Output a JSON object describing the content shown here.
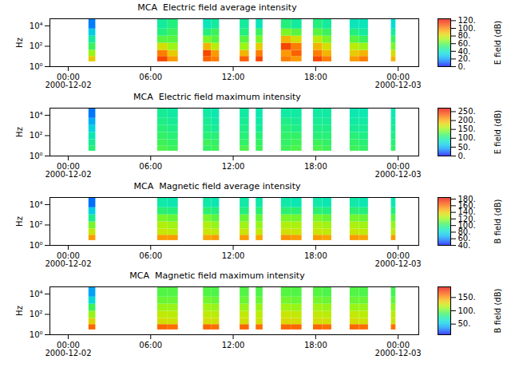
{
  "chart_data": [
    {
      "type": "heatmap",
      "title": "MCA  Electric field average intensity",
      "ylabel": "Hz",
      "log": "y",
      "xlim": [
        "2000-12-01T22:40",
        "2000-12-03T01:30"
      ],
      "xticks": [
        {
          "value": "2000-12-02T00:00",
          "label": "00:00\n2000-12-02"
        },
        {
          "value": "2000-12-02T06:00",
          "label": "06:00"
        },
        {
          "value": "2000-12-02T12:00",
          "label": "12:00"
        },
        {
          "value": "2000-12-02T18:00",
          "label": "18:00"
        },
        {
          "value": "2000-12-03T00:00",
          "label": "00:00\n2000-12-03"
        }
      ],
      "ylim": [
        1,
        50000
      ],
      "yticks": [
        {
          "value": 1,
          "label": "10⁰"
        },
        {
          "value": 100,
          "label": "10²"
        },
        {
          "value": 10000,
          "label": "10⁴"
        }
      ],
      "x": [
        [
          "2000-12-02T01:30",
          "2000-12-02T02:00"
        ],
        [
          "2000-12-02T06:30",
          "2000-12-02T07:15"
        ],
        [
          "2000-12-02T07:15",
          "2000-12-02T08:00"
        ],
        [
          "2000-12-02T09:50",
          "2000-12-02T10:25"
        ],
        [
          "2000-12-02T10:25",
          "2000-12-02T11:00"
        ],
        [
          "2000-12-02T12:30",
          "2000-12-02T13:10"
        ],
        [
          "2000-12-02T13:40",
          "2000-12-02T14:10"
        ],
        [
          "2000-12-02T15:30",
          "2000-12-02T16:15"
        ],
        [
          "2000-12-02T16:15",
          "2000-12-02T17:00"
        ],
        [
          "2000-12-02T17:50",
          "2000-12-02T18:30"
        ],
        [
          "2000-12-02T18:30",
          "2000-12-02T19:10"
        ],
        [
          "2000-12-02T20:30",
          "2000-12-02T21:10"
        ],
        [
          "2000-12-02T21:10",
          "2000-12-02T21:50"
        ],
        [
          "2000-12-02T23:30",
          "2000-12-02T23:50"
        ]
      ],
      "y": [
        3,
        10,
        40,
        200,
        1000,
        5000,
        50000
      ],
      "values": [
        [
          85,
          70,
          55,
          45,
          30,
          15
        ],
        [
          110,
          100,
          80,
          60,
          50,
          45
        ],
        [
          95,
          85,
          70,
          60,
          55,
          50
        ],
        [
          105,
          110,
          90,
          65,
          50,
          40
        ],
        [
          100,
          95,
          75,
          60,
          55,
          45
        ],
        [
          105,
          90,
          70,
          60,
          50,
          45
        ],
        [
          110,
          100,
          85,
          65,
          55,
          40
        ],
        [
          100,
          95,
          110,
          90,
          65,
          50
        ],
        [
          95,
          105,
          100,
          80,
          60,
          45
        ],
        [
          110,
          100,
          90,
          75,
          60,
          50
        ],
        [
          100,
          90,
          80,
          65,
          55,
          45
        ],
        [
          95,
          85,
          75,
          60,
          50,
          40
        ],
        [
          100,
          90,
          70,
          55,
          45,
          40
        ],
        [
          90,
          80,
          65,
          55,
          45,
          35
        ]
      ],
      "colorbar": {
        "label": "E field (dB)",
        "range": [
          0,
          125
        ],
        "ticks": [
          {
            "value": 0,
            "label": "0."
          },
          {
            "value": 20,
            "label": "20."
          },
          {
            "value": 40,
            "label": "40."
          },
          {
            "value": 60,
            "label": "60."
          },
          {
            "value": 80,
            "label": "80."
          },
          {
            "value": 100,
            "label": "100."
          },
          {
            "value": 120,
            "label": "120."
          }
        ]
      }
    },
    {
      "type": "heatmap",
      "title": "MCA  Electric field maximum intensity",
      "ylabel": "Hz",
      "log": "y",
      "xlim": [
        "2000-12-01T22:40",
        "2000-12-03T01:30"
      ],
      "xticks": [
        {
          "value": "2000-12-02T00:00",
          "label": "00:00\n2000-12-02"
        },
        {
          "value": "2000-12-02T06:00",
          "label": "06:00"
        },
        {
          "value": "2000-12-02T12:00",
          "label": "12:00"
        },
        {
          "value": "2000-12-02T18:00",
          "label": "18:00"
        },
        {
          "value": "2000-12-03T00:00",
          "label": "00:00\n2000-12-03"
        }
      ],
      "ylim": [
        1,
        50000
      ],
      "yticks": [
        {
          "value": 1,
          "label": "10⁰"
        },
        {
          "value": 100,
          "label": "10²"
        },
        {
          "value": 10000,
          "label": "10⁴"
        }
      ],
      "x": [
        [
          "2000-12-02T01:30",
          "2000-12-02T02:00"
        ],
        [
          "2000-12-02T06:30",
          "2000-12-02T07:15"
        ],
        [
          "2000-12-02T07:15",
          "2000-12-02T08:00"
        ],
        [
          "2000-12-02T09:50",
          "2000-12-02T10:25"
        ],
        [
          "2000-12-02T10:25",
          "2000-12-02T11:00"
        ],
        [
          "2000-12-02T12:30",
          "2000-12-02T13:10"
        ],
        [
          "2000-12-02T13:40",
          "2000-12-02T14:10"
        ],
        [
          "2000-12-02T15:30",
          "2000-12-02T16:15"
        ],
        [
          "2000-12-02T16:15",
          "2000-12-02T17:00"
        ],
        [
          "2000-12-02T17:50",
          "2000-12-02T18:30"
        ],
        [
          "2000-12-02T18:30",
          "2000-12-02T19:10"
        ],
        [
          "2000-12-02T20:30",
          "2000-12-02T21:10"
        ],
        [
          "2000-12-02T21:10",
          "2000-12-02T21:50"
        ],
        [
          "2000-12-02T23:30",
          "2000-12-02T23:50"
        ]
      ],
      "y": [
        3,
        10,
        40,
        200,
        1000,
        5000,
        50000
      ],
      "values": [
        [
          110,
          100,
          90,
          70,
          50,
          30
        ],
        [
          125,
          120,
          115,
          110,
          105,
          100
        ],
        [
          120,
          115,
          110,
          105,
          100,
          95
        ],
        [
          115,
          120,
          110,
          105,
          100,
          95
        ],
        [
          120,
          115,
          110,
          100,
          95,
          90
        ],
        [
          125,
          115,
          110,
          105,
          100,
          95
        ],
        [
          120,
          115,
          110,
          100,
          95,
          90
        ],
        [
          120,
          115,
          115,
          110,
          105,
          95
        ],
        [
          125,
          120,
          115,
          105,
          100,
          95
        ],
        [
          125,
          120,
          110,
          105,
          100,
          95
        ],
        [
          120,
          115,
          110,
          105,
          100,
          95
        ],
        [
          120,
          115,
          110,
          100,
          95,
          90
        ],
        [
          115,
          110,
          105,
          100,
          95,
          90
        ],
        [
          115,
          110,
          105,
          100,
          95,
          90
        ]
      ],
      "colorbar": {
        "label": "E field (dB)",
        "range": [
          0,
          270
        ],
        "ticks": [
          {
            "value": 0,
            "label": "0."
          },
          {
            "value": 50,
            "label": "50."
          },
          {
            "value": 100,
            "label": "100."
          },
          {
            "value": 150,
            "label": "150."
          },
          {
            "value": 200,
            "label": "200."
          },
          {
            "value": 250,
            "label": "250."
          }
        ]
      }
    },
    {
      "type": "heatmap",
      "title": "MCA  Magnetic field average intensity",
      "ylabel": "Hz",
      "log": "y",
      "xlim": [
        "2000-12-01T22:40",
        "2000-12-03T01:30"
      ],
      "xticks": [
        {
          "value": "2000-12-02T00:00",
          "label": "00:00\n2000-12-02"
        },
        {
          "value": "2000-12-02T06:00",
          "label": "06:00"
        },
        {
          "value": "2000-12-02T12:00",
          "label": "12:00"
        },
        {
          "value": "2000-12-02T18:00",
          "label": "18:00"
        },
        {
          "value": "2000-12-03T00:00",
          "label": "00:00\n2000-12-03"
        }
      ],
      "ylim": [
        1,
        50000
      ],
      "yticks": [
        {
          "value": 1,
          "label": "10⁰"
        },
        {
          "value": 100,
          "label": "10²"
        },
        {
          "value": 10000,
          "label": "10⁴"
        }
      ],
      "x": [
        [
          "2000-12-02T01:30",
          "2000-12-02T02:00"
        ],
        [
          "2000-12-02T06:30",
          "2000-12-02T07:15"
        ],
        [
          "2000-12-02T07:15",
          "2000-12-02T08:00"
        ],
        [
          "2000-12-02T09:50",
          "2000-12-02T10:25"
        ],
        [
          "2000-12-02T10:25",
          "2000-12-02T11:00"
        ],
        [
          "2000-12-02T12:30",
          "2000-12-02T13:10"
        ],
        [
          "2000-12-02T13:40",
          "2000-12-02T14:10"
        ],
        [
          "2000-12-02T15:30",
          "2000-12-02T16:15"
        ],
        [
          "2000-12-02T16:15",
          "2000-12-02T17:00"
        ],
        [
          "2000-12-02T17:50",
          "2000-12-02T18:30"
        ],
        [
          "2000-12-02T18:30",
          "2000-12-02T19:10"
        ],
        [
          "2000-12-02T20:30",
          "2000-12-02T21:10"
        ],
        [
          "2000-12-02T21:10",
          "2000-12-02T21:50"
        ],
        [
          "2000-12-02T23:30",
          "2000-12-02T23:50"
        ]
      ],
      "y": [
        3,
        10,
        40,
        200,
        1000,
        5000,
        50000
      ],
      "values": [
        [
          150,
          130,
          115,
          95,
          75,
          55
        ],
        [
          150,
          130,
          125,
          115,
          100,
          90
        ],
        [
          150,
          128,
          122,
          112,
          98,
          88
        ],
        [
          148,
          130,
          125,
          115,
          100,
          90
        ],
        [
          150,
          128,
          120,
          110,
          98,
          88
        ],
        [
          150,
          130,
          122,
          112,
          98,
          90
        ],
        [
          148,
          128,
          120,
          112,
          100,
          90
        ],
        [
          152,
          132,
          125,
          115,
          100,
          90
        ],
        [
          150,
          130,
          124,
          114,
          100,
          88
        ],
        [
          150,
          130,
          125,
          115,
          100,
          90
        ],
        [
          148,
          128,
          122,
          112,
          98,
          88
        ],
        [
          150,
          130,
          124,
          114,
          100,
          90
        ],
        [
          148,
          128,
          122,
          112,
          98,
          88
        ],
        [
          150,
          128,
          120,
          110,
          98,
          88
        ]
      ],
      "colorbar": {
        "label": "B field (dB)",
        "range": [
          40,
          185
        ],
        "ticks": [
          {
            "value": 40,
            "label": "40."
          },
          {
            "value": 60,
            "label": "60."
          },
          {
            "value": 80,
            "label": "80."
          },
          {
            "value": 100,
            "label": "100."
          },
          {
            "value": 120,
            "label": "120."
          },
          {
            "value": 140,
            "label": "140."
          },
          {
            "value": 160,
            "label": "160."
          },
          {
            "value": 180,
            "label": "180."
          }
        ]
      }
    },
    {
      "type": "heatmap",
      "title": "MCA  Magnetic field maximum intensity",
      "ylabel": "Hz",
      "log": "y",
      "xlim": [
        "2000-12-01T22:40",
        "2000-12-03T01:30"
      ],
      "xticks": [
        {
          "value": "2000-12-02T00:00",
          "label": "00:00\n2000-12-02"
        },
        {
          "value": "2000-12-02T06:00",
          "label": "06:00"
        },
        {
          "value": "2000-12-02T12:00",
          "label": "12:00"
        },
        {
          "value": "2000-12-02T18:00",
          "label": "18:00"
        },
        {
          "value": "2000-12-03T00:00",
          "label": "00:00\n2000-12-03"
        }
      ],
      "ylim": [
        1,
        50000
      ],
      "yticks": [
        {
          "value": 1,
          "label": "10⁰"
        },
        {
          "value": 100,
          "label": "10²"
        },
        {
          "value": 10000,
          "label": "10⁴"
        }
      ],
      "x": [
        [
          "2000-12-02T01:30",
          "2000-12-02T02:00"
        ],
        [
          "2000-12-02T06:30",
          "2000-12-02T07:15"
        ],
        [
          "2000-12-02T07:15",
          "2000-12-02T08:00"
        ],
        [
          "2000-12-02T09:50",
          "2000-12-02T10:25"
        ],
        [
          "2000-12-02T10:25",
          "2000-12-02T11:00"
        ],
        [
          "2000-12-02T12:30",
          "2000-12-02T13:10"
        ],
        [
          "2000-12-02T13:40",
          "2000-12-02T14:10"
        ],
        [
          "2000-12-02T15:30",
          "2000-12-02T16:15"
        ],
        [
          "2000-12-02T16:15",
          "2000-12-02T17:00"
        ],
        [
          "2000-12-02T17:50",
          "2000-12-02T18:30"
        ],
        [
          "2000-12-02T18:30",
          "2000-12-02T19:10"
        ],
        [
          "2000-12-02T20:30",
          "2000-12-02T21:10"
        ],
        [
          "2000-12-02T21:10",
          "2000-12-02T21:50"
        ],
        [
          "2000-12-02T23:30",
          "2000-12-02T23:50"
        ]
      ],
      "y": [
        3,
        10,
        40,
        200,
        1000,
        5000,
        50000
      ],
      "values": [
        [
          160,
          130,
          110,
          90,
          60,
          40
        ],
        [
          160,
          125,
          120,
          110,
          100,
          95
        ],
        [
          158,
          124,
          118,
          110,
          100,
          95
        ],
        [
          160,
          126,
          120,
          112,
          102,
          95
        ],
        [
          158,
          124,
          118,
          110,
          100,
          94
        ],
        [
          160,
          125,
          120,
          110,
          100,
          95
        ],
        [
          158,
          124,
          118,
          110,
          100,
          94
        ],
        [
          160,
          128,
          122,
          112,
          102,
          96
        ],
        [
          160,
          126,
          120,
          110,
          100,
          95
        ],
        [
          160,
          126,
          120,
          112,
          102,
          96
        ],
        [
          158,
          124,
          118,
          110,
          100,
          94
        ],
        [
          160,
          126,
          120,
          110,
          100,
          95
        ],
        [
          158,
          124,
          118,
          110,
          100,
          94
        ],
        [
          158,
          124,
          118,
          108,
          98,
          92
        ]
      ],
      "colorbar": {
        "label": "B field (dB)",
        "range": [
          10,
          190
        ],
        "ticks": [
          {
            "value": 50,
            "label": "50."
          },
          {
            "value": 100,
            "label": "100."
          },
          {
            "value": 150,
            "label": "150."
          }
        ]
      }
    }
  ]
}
